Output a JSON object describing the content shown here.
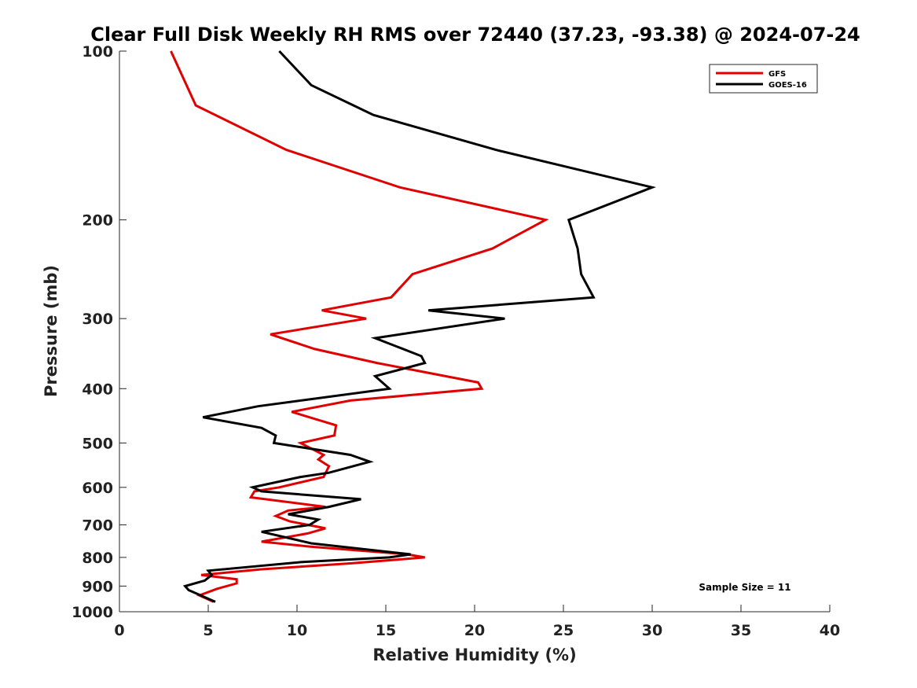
{
  "chart_data": {
    "type": "line",
    "title": "Clear Full Disk Weekly RH RMS over 72440 (37.23, -93.38) @ 2024-07-24",
    "xlabel": "Relative Humidity (%)",
    "ylabel": "Pressure (mb)",
    "xlim": [
      0,
      40
    ],
    "ylim": [
      100,
      1000
    ],
    "y_scale": "log",
    "y_reversed": true,
    "x_ticks": [
      0,
      5,
      10,
      15,
      20,
      25,
      30,
      35,
      40
    ],
    "y_ticks": [
      100,
      200,
      300,
      400,
      500,
      600,
      700,
      800,
      900,
      1000
    ],
    "grid": false,
    "legend_position": "top-right",
    "annotation": "Sample Size = 11",
    "series": [
      {
        "name": "GFS",
        "color": "#e00000",
        "points": [
          [
            2.9,
            100
          ],
          [
            4.3,
            125
          ],
          [
            9.4,
            150
          ],
          [
            15.8,
            175
          ],
          [
            24.0,
            200
          ],
          [
            21.0,
            225
          ],
          [
            16.5,
            250
          ],
          [
            15.3,
            275
          ],
          [
            11.4,
            290
          ],
          [
            13.9,
            300
          ],
          [
            8.5,
            320
          ],
          [
            11.0,
            340
          ],
          [
            14.5,
            360
          ],
          [
            20.2,
            390
          ],
          [
            20.4,
            400
          ],
          [
            13.0,
            420
          ],
          [
            9.7,
            440
          ],
          [
            12.2,
            465
          ],
          [
            12.1,
            485
          ],
          [
            10.2,
            500
          ],
          [
            11.5,
            525
          ],
          [
            11.2,
            535
          ],
          [
            11.8,
            550
          ],
          [
            11.5,
            575
          ],
          [
            9.0,
            600
          ],
          [
            7.6,
            610
          ],
          [
            7.4,
            625
          ],
          [
            11.6,
            650
          ],
          [
            9.5,
            660
          ],
          [
            8.8,
            675
          ],
          [
            9.6,
            690
          ],
          [
            11.6,
            710
          ],
          [
            10.6,
            725
          ],
          [
            8.0,
            750
          ],
          [
            10.7,
            765
          ],
          [
            16.2,
            790
          ],
          [
            17.2,
            800
          ],
          [
            13.0,
            820
          ],
          [
            8.0,
            840
          ],
          [
            4.6,
            860
          ],
          [
            6.6,
            875
          ],
          [
            6.6,
            890
          ],
          [
            5.5,
            910
          ],
          [
            4.5,
            935
          ],
          [
            5.3,
            960
          ]
        ]
      },
      {
        "name": "GOES-16",
        "color": "#000000",
        "points": [
          [
            9.0,
            100
          ],
          [
            10.8,
            115
          ],
          [
            14.3,
            130
          ],
          [
            21.2,
            150
          ],
          [
            30.0,
            175
          ],
          [
            25.3,
            200
          ],
          [
            25.8,
            225
          ],
          [
            26.0,
            250
          ],
          [
            26.7,
            275
          ],
          [
            17.4,
            290
          ],
          [
            21.7,
            300
          ],
          [
            14.4,
            325
          ],
          [
            17.0,
            350
          ],
          [
            17.2,
            360
          ],
          [
            14.4,
            380
          ],
          [
            15.2,
            400
          ],
          [
            7.8,
            430
          ],
          [
            4.7,
            450
          ],
          [
            8.0,
            470
          ],
          [
            8.8,
            485
          ],
          [
            8.7,
            500
          ],
          [
            13.0,
            525
          ],
          [
            14.1,
            540
          ],
          [
            11.8,
            565
          ],
          [
            10.2,
            575
          ],
          [
            7.5,
            600
          ],
          [
            8.0,
            610
          ],
          [
            13.6,
            630
          ],
          [
            11.8,
            650
          ],
          [
            9.5,
            670
          ],
          [
            11.2,
            685
          ],
          [
            10.7,
            700
          ],
          [
            8.0,
            720
          ],
          [
            10.8,
            755
          ],
          [
            16.4,
            790
          ],
          [
            15.2,
            800
          ],
          [
            10.3,
            815
          ],
          [
            5.0,
            845
          ],
          [
            5.2,
            860
          ],
          [
            4.8,
            880
          ],
          [
            3.7,
            900
          ],
          [
            3.9,
            915
          ],
          [
            5.4,
            960
          ]
        ]
      }
    ]
  }
}
